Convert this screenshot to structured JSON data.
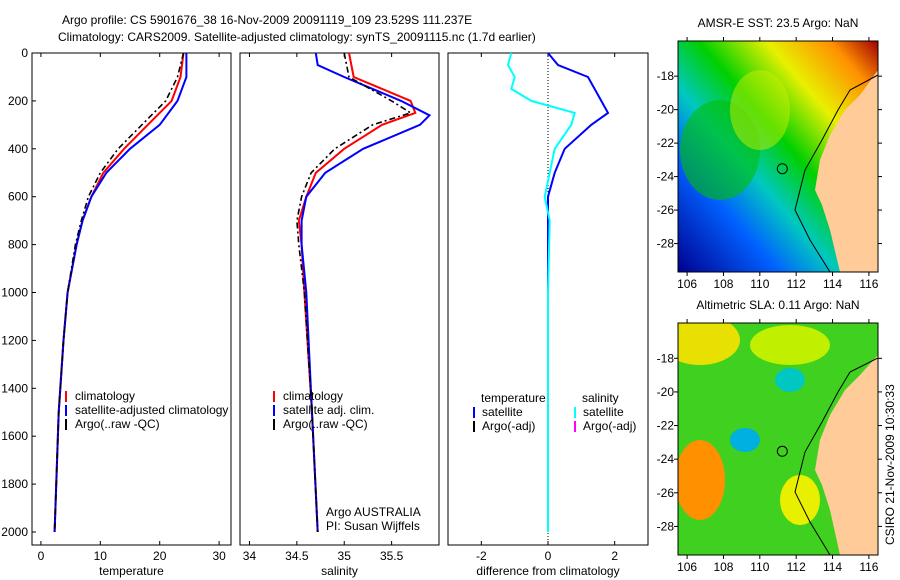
{
  "title_line1": "Argo profile: CS 5901676_38 16-Nov-2009 20091119_109 23.529S 111.237E",
  "title_line2": "Climatology: CARS2009. Satellite-adjusted climatology: synTS_20091115.nc (1.7d earlier)",
  "side_label": "CSIRO 21-Nov-2009 10:30:33",
  "credit_line1": "Argo AUSTRALIA",
  "credit_line2": "PI: Susan Wijffels",
  "colors": {
    "climatology": "#ff0000",
    "satellite": "#0000ff",
    "argo": "#000000",
    "sat_salinity": "#00ffff",
    "argo_salinity": "#ff00ff",
    "land": "#ffcc99"
  },
  "chart_data": [
    {
      "type": "line",
      "xlabel": "temperature",
      "ylabel": "",
      "xlim": [
        -1.5,
        32
      ],
      "ylim": [
        2000,
        0
      ],
      "xticks": [
        0,
        10,
        20,
        30
      ],
      "yticks": [
        0,
        200,
        400,
        600,
        800,
        1000,
        1200,
        1400,
        1600,
        1800,
        2000
      ],
      "legend": [
        "climatology",
        "satellite-adjusted climatology",
        "Argo(..raw -QC)"
      ],
      "series": [
        {
          "name": "climatology",
          "color": "#ff0000",
          "style": "solid",
          "depth": [
            0,
            100,
            200,
            300,
            400,
            500,
            600,
            700,
            800,
            1000,
            1200,
            1500,
            2000
          ],
          "values": [
            24,
            23.5,
            22,
            18,
            14,
            10.5,
            8.5,
            7,
            6,
            4.5,
            3.8,
            3,
            2.3
          ]
        },
        {
          "name": "satellite-adjusted climatology",
          "color": "#0000ff",
          "style": "solid",
          "depth": [
            0,
            100,
            200,
            300,
            400,
            500,
            600,
            700,
            800,
            1000,
            1200,
            1500,
            2000
          ],
          "values": [
            24.5,
            24.5,
            23,
            20,
            15,
            11,
            8.5,
            7,
            6,
            4.5,
            3.8,
            3,
            2.3
          ]
        },
        {
          "name": "Argo(..raw -QC)",
          "color": "#000000",
          "style": "dashdot",
          "depth": [
            0,
            100,
            200,
            300,
            400,
            500,
            600,
            700,
            800,
            1000,
            1200,
            1500,
            2000
          ],
          "values": [
            24,
            23,
            21,
            17,
            13,
            10,
            8,
            6.8,
            5.8,
            4.5,
            3.8,
            3,
            2.3
          ]
        }
      ]
    },
    {
      "type": "line",
      "xlabel": "salinity",
      "ylabel": "",
      "xlim": [
        33.9,
        36.0
      ],
      "ylim": [
        2000,
        0
      ],
      "xticks": [
        34,
        34.5,
        35,
        35.5
      ],
      "yticks": [],
      "legend": [
        "climatology",
        "satellite adj. clim.",
        "Argo(..raw -QC)"
      ],
      "series": [
        {
          "name": "climatology",
          "color": "#ff0000",
          "style": "solid",
          "depth": [
            0,
            100,
            200,
            250,
            300,
            400,
            500,
            600,
            700,
            800,
            1000,
            1500,
            2000
          ],
          "values": [
            35.05,
            35.1,
            35.7,
            35.75,
            35.4,
            35.0,
            34.7,
            34.6,
            34.52,
            34.55,
            34.58,
            34.66,
            34.72
          ]
        },
        {
          "name": "satellite adj. clim.",
          "color": "#0000ff",
          "style": "solid",
          "depth": [
            0,
            50,
            100,
            200,
            260,
            300,
            400,
            500,
            600,
            700,
            800,
            1000,
            1500,
            2000
          ],
          "values": [
            34.7,
            34.72,
            35.0,
            35.6,
            35.9,
            35.8,
            35.2,
            34.8,
            34.6,
            34.55,
            34.55,
            34.6,
            34.66,
            34.72
          ]
        },
        {
          "name": "Argo(..raw -QC)",
          "color": "#000000",
          "style": "dashdot",
          "depth": [
            0,
            100,
            200,
            250,
            300,
            400,
            500,
            600,
            700,
            800,
            1000,
            1500,
            2000
          ],
          "values": [
            35.0,
            35.05,
            35.5,
            35.7,
            35.3,
            34.9,
            34.65,
            34.55,
            34.5,
            34.52,
            34.58,
            34.66,
            34.72
          ]
        }
      ]
    },
    {
      "type": "line",
      "xlabel": "difference from climatology",
      "ylabel": "",
      "xlim": [
        -3,
        3
      ],
      "ylim": [
        2000,
        0
      ],
      "xticks": [
        -2,
        0,
        2
      ],
      "yticks": [],
      "legend_headers": [
        "temperature",
        "salinity"
      ],
      "legend": [
        "satellite",
        "Argo(-adj)",
        "satellite",
        "Argo(-adj)"
      ],
      "series": [
        {
          "name": "temperature satellite",
          "color": "#0000ff",
          "style": "solid",
          "depth": [
            0,
            50,
            100,
            200,
            250,
            300,
            400,
            500,
            600,
            700,
            1000,
            2000
          ],
          "values": [
            0,
            0.3,
            1.2,
            1.6,
            1.8,
            1.3,
            0.5,
            0.2,
            0,
            0,
            0,
            0
          ]
        },
        {
          "name": "salinity satellite",
          "color": "#00ffff",
          "style": "solid",
          "depth": [
            0,
            50,
            100,
            150,
            200,
            250,
            300,
            400,
            600,
            700,
            1000,
            2000
          ],
          "values": [
            -1.1,
            -1.2,
            -1.0,
            -1.1,
            -0.5,
            0.8,
            0.7,
            0.2,
            -0.1,
            0.05,
            0,
            0
          ]
        }
      ]
    },
    {
      "type": "heatmap",
      "title": "AMSR-E SST: 23.5 Argo: NaN",
      "xticks": [
        106,
        108,
        110,
        112,
        114,
        116
      ],
      "yticks": [
        -18,
        -20,
        -22,
        -24,
        -26,
        -28
      ],
      "xlim": [
        105.5,
        116.5
      ],
      "ylim": [
        -29.7,
        -15.9
      ],
      "marker": {
        "lon": 111.237,
        "lat": -23.529
      }
    },
    {
      "type": "heatmap",
      "title": "Altimetric SLA: 0.11 Argo: NaN",
      "xticks": [
        106,
        108,
        110,
        112,
        114,
        116
      ],
      "yticks": [
        -18,
        -20,
        -22,
        -24,
        -26,
        -28
      ],
      "xlim": [
        105.5,
        116.5
      ],
      "ylim": [
        -29.7,
        -15.9
      ],
      "marker": {
        "lon": 111.237,
        "lat": -23.529
      }
    }
  ]
}
